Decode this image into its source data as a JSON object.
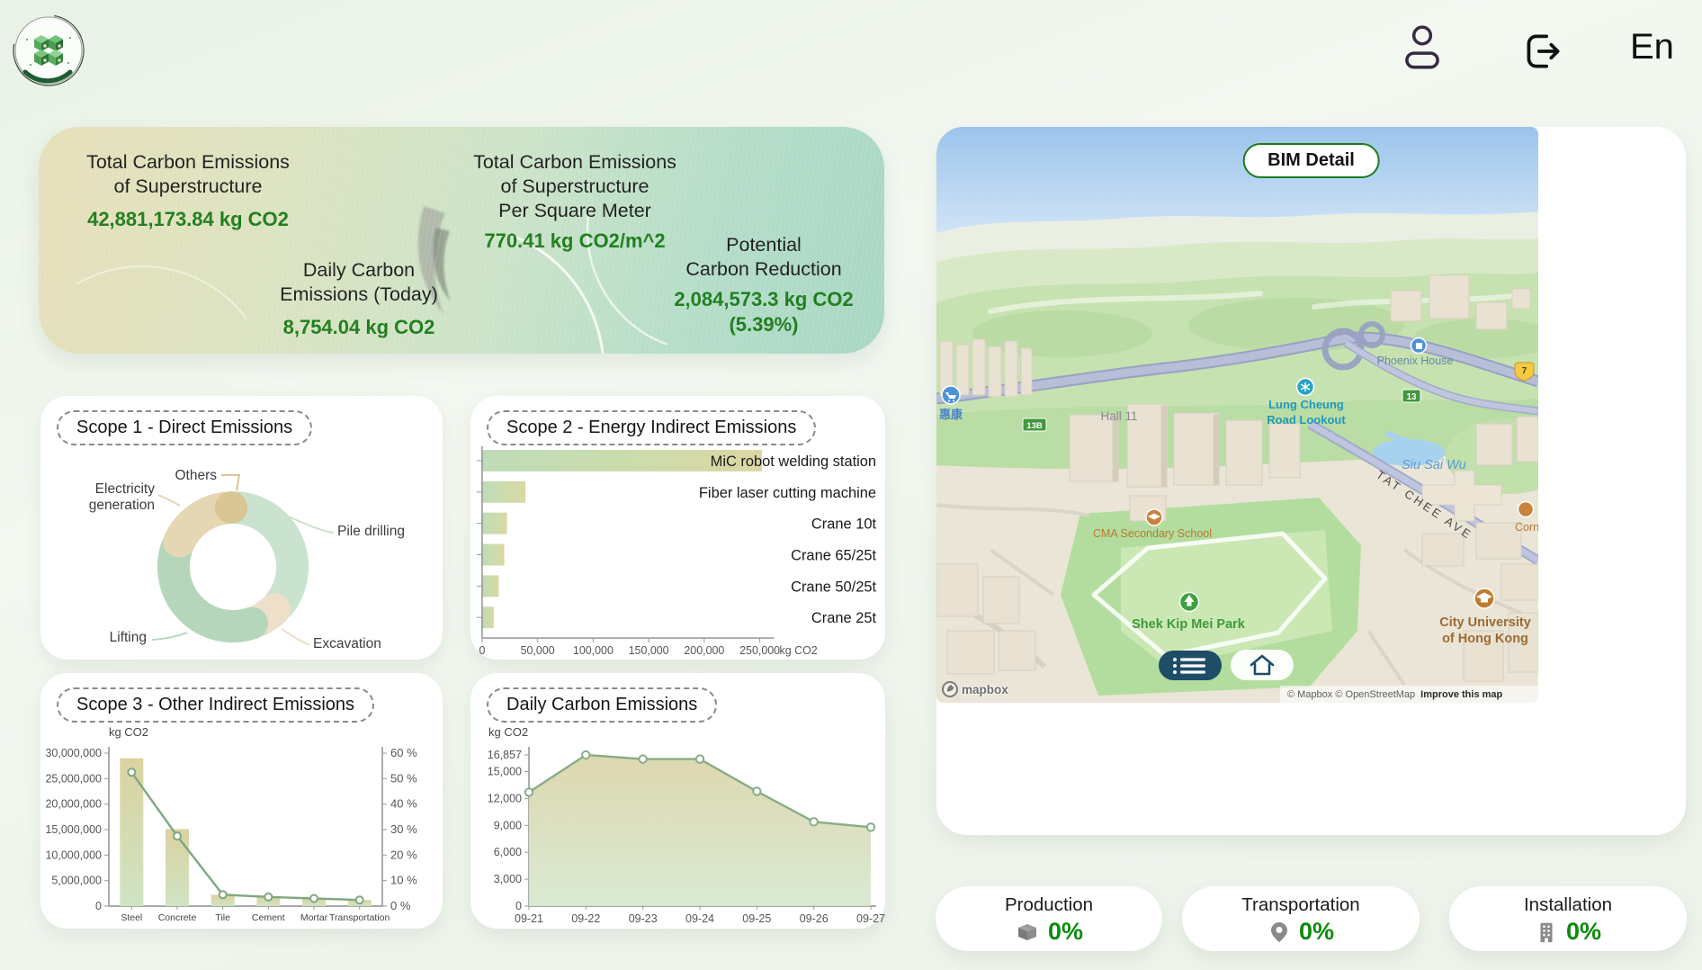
{
  "header": {
    "language_label": "En"
  },
  "banner": {
    "total": {
      "line1": "Total Carbon Emissions",
      "line2": "of Superstructure",
      "value": "42,881,173.84 kg CO2"
    },
    "per_sqm": {
      "line1": "Total Carbon Emissions",
      "line2": "of Superstructure",
      "line3": "Per Square Meter",
      "value": "770.41 kg CO2/m^2"
    },
    "daily": {
      "line1": "Daily Carbon",
      "line2": "Emissions (Today)",
      "value": "8,754.04 kg CO2"
    },
    "reduction": {
      "line1": "Potential",
      "line2": "Carbon Reduction",
      "value_line1": "2,084,573.3 kg CO2",
      "value_line2": "(5.39%)"
    }
  },
  "panels": {
    "scope1_title": "Scope 1 - Direct Emissions",
    "scope2_title": "Scope 2 - Energy Indirect Emissions",
    "scope3_title": "Scope 3 - Other Indirect Emissions",
    "daily_title": "Daily Carbon Emissions",
    "bim_title": "BIM Detail"
  },
  "phases": {
    "production": {
      "label": "Production",
      "value": "0%"
    },
    "transportation": {
      "label": "Transportation",
      "value": "0%"
    },
    "installation": {
      "label": "Installation",
      "value": "0%"
    }
  },
  "map": {
    "labels": {
      "wellcome": "惠康",
      "route_13b": "13B",
      "hall_11": "Hall 11",
      "lung_cheung_1": "Lung Cheung",
      "lung_cheung_2": "Road Lookout",
      "phoenix_house": "Phoenix House",
      "route_13": "13",
      "route_7": "7",
      "siu_sai_wu": "Siu Sai Wu",
      "tat_chee_ave": "TAT CHEE AVE",
      "cma_school": "CMA Secondary School",
      "cornwall": "Cornwall S",
      "shek_kip_mei_park": "Shek Kip Mei Park",
      "cityu_1": "City University",
      "cityu_2": "of Hong Kong",
      "attribution": "© Mapbox © OpenStreetMap",
      "improve_link": "Improve this map",
      "mapbox_wordmark": "mapbox"
    }
  },
  "chart_data": [
    {
      "id": "scope1",
      "type": "pie",
      "title": "Scope 1 - Direct Emissions",
      "labels": [
        "Pile drilling",
        "Excavation",
        "Lifting",
        "Electricity generation",
        "Others"
      ],
      "values": [
        36,
        7,
        36.5,
        17,
        1.5
      ],
      "unit": "% of ring (estimated, no numeric labels shown)",
      "colors": [
        "#c9e3cf",
        "#eedfca",
        "#b5d6ba",
        "#e6d7b4",
        "#d8c795"
      ],
      "legend_position": "callout-labels"
    },
    {
      "id": "scope2",
      "type": "bar",
      "orientation": "horizontal",
      "title": "Scope 2 - Energy Indirect Emissions",
      "categories": [
        "MiC robot welding station",
        "Fiber laser cutting machine",
        "Crane 10t",
        "Crane 65/25t",
        "Crane 50/25t",
        "Crane 25t"
      ],
      "values": [
        252000,
        39000,
        22500,
        20000,
        15000,
        10500
      ],
      "xlabel": "kg CO2",
      "xticks": [
        0,
        50000,
        100000,
        150000,
        200000,
        250000
      ],
      "xlim": [
        0,
        250000
      ],
      "grid": false
    },
    {
      "id": "scope3",
      "type": "bar+line",
      "title": "Scope 3 - Other Indirect Emissions",
      "categories": [
        "Steel",
        "Concrete",
        "Tile",
        "Cement",
        "Mortar",
        "Transportation"
      ],
      "series": [
        {
          "name": "emissions",
          "type": "bar",
          "unit": "kg CO2",
          "values": [
            29000000,
            15100000,
            2200000,
            1800000,
            1500000,
            1200000
          ]
        },
        {
          "name": "share",
          "type": "line",
          "unit": "%",
          "values": [
            52.5,
            27.5,
            4.5,
            3.6,
            3.0,
            2.4
          ]
        }
      ],
      "ylabel": "kg CO2",
      "yticks": [
        0,
        5000000,
        10000000,
        15000000,
        20000000,
        25000000,
        30000000
      ],
      "ylim": [
        0,
        30000000
      ],
      "y2ticks": [
        0,
        10,
        20,
        30,
        40,
        50,
        60
      ],
      "y2lim": [
        0,
        60
      ],
      "grid": false
    },
    {
      "id": "daily",
      "type": "area",
      "title": "Daily Carbon Emissions",
      "x": [
        "09-21",
        "09-22",
        "09-23",
        "09-24",
        "09-25",
        "09-26",
        "09-27"
      ],
      "values": [
        12700,
        16857,
        16400,
        16400,
        12800,
        9400,
        8800
      ],
      "ylabel": "kg CO2",
      "yticks": [
        0,
        3000,
        6000,
        9000,
        12000,
        15000,
        16857
      ],
      "ylim": [
        0,
        16857
      ],
      "grid": false
    }
  ],
  "colors": {
    "value_green": "#1c7c1a",
    "phase_green": "#0c8a0c",
    "badge_border": "#1d7a1d",
    "map_button": "#1e4d68"
  }
}
